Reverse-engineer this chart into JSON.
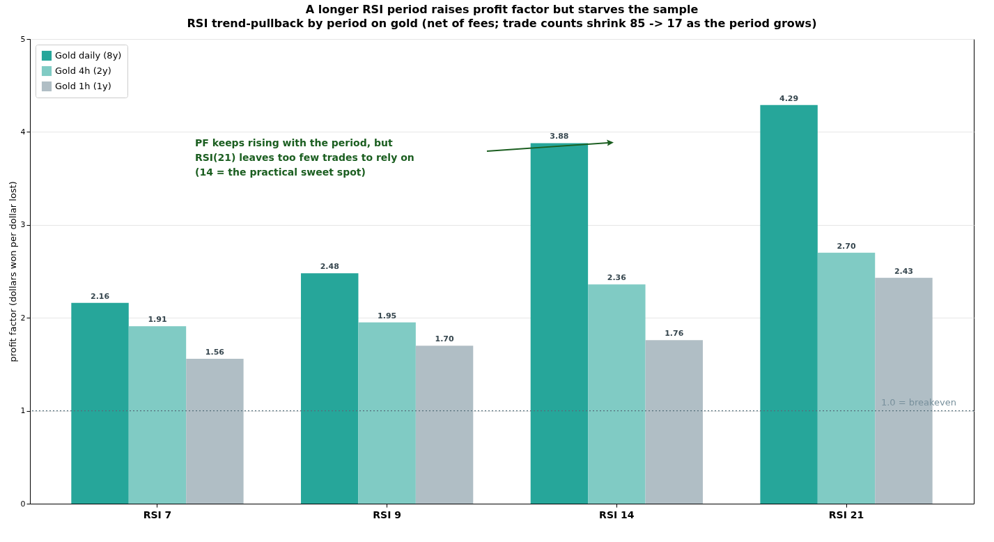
{
  "chart_data": {
    "type": "bar",
    "title": "A longer RSI period raises profit factor but starves the sample",
    "subtitle": "RSI trend-pullback by period on gold (net of fees; trade counts shrink 85 -> 17 as the period grows)",
    "ylabel": "profit factor (dollars won per dollar lost)",
    "categories": [
      "RSI 7",
      "RSI 9",
      "RSI 14",
      "RSI 21"
    ],
    "series": [
      {
        "name": "Gold daily (8y)",
        "color": "#26a69a",
        "values": [
          2.16,
          2.48,
          3.88,
          4.29
        ],
        "value_labels": [
          "2.16",
          "2.48",
          "3.88",
          "4.29"
        ]
      },
      {
        "name": "Gold 4h (2y)",
        "color": "#80cbc4",
        "values": [
          1.91,
          1.95,
          2.36,
          2.7
        ],
        "value_labels": [
          "1.91",
          "1.95",
          "2.36",
          "2.70"
        ]
      },
      {
        "name": "Gold 1h (1y)",
        "color": "#b0bec5",
        "values": [
          1.56,
          1.7,
          1.76,
          2.43
        ],
        "value_labels": [
          "1.56",
          "1.70",
          "1.76",
          "2.43"
        ]
      }
    ],
    "ylim": [
      0,
      5
    ],
    "yticks": [
      0,
      1,
      2,
      3,
      4,
      5
    ],
    "grid": "y",
    "legend": "top left",
    "ref_lines": [
      {
        "axis": "y",
        "value": 1,
        "label": "1.0 = breakeven",
        "color": "#546e7a",
        "line_style": "dotted"
      }
    ],
    "annotations": [
      "PF keeps rising with the period, but\nRSI(21) leaves too few trades to rely on\n(14 = the practical sweet spot)"
    ]
  }
}
